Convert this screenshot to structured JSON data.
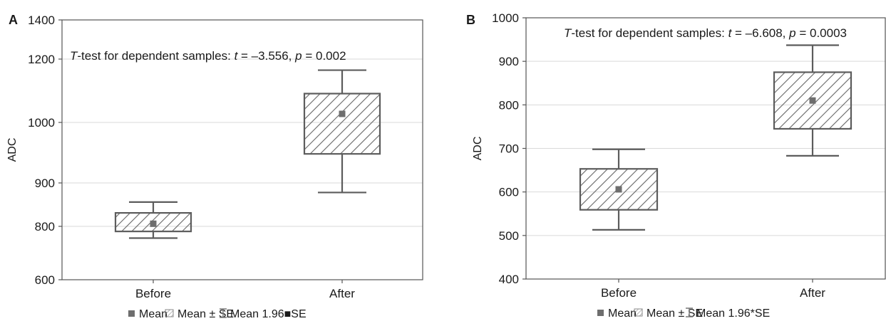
{
  "colors": {
    "frame": "#555555",
    "box_stroke": "#5c5c5c",
    "hatch": "#666666",
    "mean_marker": "#6e6e6e",
    "gridline": "#d9d9d9",
    "text": "#1a1a1a"
  },
  "legend_icons": [
    "square-marker-icon",
    "hatched-box-icon",
    "whisker-icon"
  ],
  "chart_data": [
    {
      "type": "box",
      "panel_label": "A",
      "title": "",
      "annotation": {
        "italic": "T",
        "pre": "-test for dependent samples: ",
        "t_var": "t",
        "t_val": " = –3.556, ",
        "p_var": "p",
        "p_val": " = 0.002"
      },
      "xlabel": "",
      "ylabel": "ADC",
      "categories": [
        "Before",
        "After"
      ],
      "y_ticks": [
        {
          "value": 600,
          "label": "600"
        },
        {
          "value": 800,
          "label": "800"
        },
        {
          "value": 900,
          "label": "900"
        },
        {
          "value": 1000,
          "label": "1000"
        },
        {
          "value": 1200,
          "label": "1200"
        },
        {
          "value": 1400,
          "label": "1400"
        }
      ],
      "ylim_labels": [
        600,
        1400
      ],
      "grid": true,
      "values": {
        "mean": [
          806,
          1027
        ],
        "se_low": [
          781,
          948
        ],
        "se_high": [
          831,
          1091
        ],
        "ci_low": [
          756,
          878
        ],
        "ci_high": [
          856,
          1165
        ]
      },
      "legend": {
        "mean": "Mean",
        "se": "Mean ± SE",
        "ci": "Mean 1.96■SE"
      }
    },
    {
      "type": "box",
      "panel_label": "B",
      "title": "",
      "annotation": {
        "italic": "T",
        "pre": "-test for dependent samples: ",
        "t_var": "t",
        "t_val": " = –6.608, ",
        "p_var": "p",
        "p_val": " = 0.0003"
      },
      "xlabel": "",
      "ylabel": "ADC",
      "categories": [
        "Before",
        "After"
      ],
      "y_ticks": [
        {
          "value": 400,
          "label": "400"
        },
        {
          "value": 500,
          "label": "500"
        },
        {
          "value": 600,
          "label": "600"
        },
        {
          "value": 700,
          "label": "700"
        },
        {
          "value": 800,
          "label": "800"
        },
        {
          "value": 900,
          "label": "900"
        },
        {
          "value": 1000,
          "label": "1000"
        }
      ],
      "ylim": [
        400,
        1000
      ],
      "grid": true,
      "values": {
        "mean": [
          606,
          810
        ],
        "se_low": [
          559,
          745
        ],
        "se_high": [
          653,
          875
        ],
        "ci_low": [
          513,
          683
        ],
        "ci_high": [
          698,
          937
        ]
      },
      "legend": {
        "mean": "Mean",
        "se": "Mean ± SE",
        "ci": "Mean 1.96*SE"
      }
    }
  ]
}
